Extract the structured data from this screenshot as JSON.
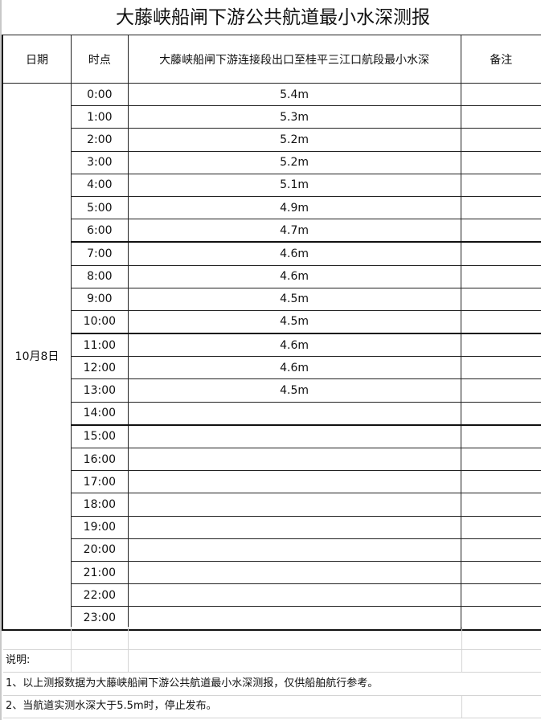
{
  "title": "大藤峡船闸下游公共航道最小水深测报",
  "headers": {
    "date": "日期",
    "time": "时点",
    "depth": "大藤峡船闸下游连接段出口至桂平三江口航段最小水深",
    "remark": "备注"
  },
  "date": "10月8日",
  "rows": [
    {
      "time": "0:00",
      "depth": "5.4m"
    },
    {
      "time": "1:00",
      "depth": "5.3m"
    },
    {
      "time": "2:00",
      "depth": "5.2m"
    },
    {
      "time": "3:00",
      "depth": "5.2m"
    },
    {
      "time": "4:00",
      "depth": "5.1m"
    },
    {
      "time": "5:00",
      "depth": "4.9m"
    },
    {
      "time": "6:00",
      "depth": "4.7m"
    },
    {
      "time": "7:00",
      "depth": "4.6m"
    },
    {
      "time": "8:00",
      "depth": "4.6m"
    },
    {
      "time": "9:00",
      "depth": "4.5m"
    },
    {
      "time": "10:00",
      "depth": "4.5m"
    },
    {
      "time": "11:00",
      "depth": "4.6m"
    },
    {
      "time": "12:00",
      "depth": "4.6m"
    },
    {
      "time": "13:00",
      "depth": "4.5m"
    },
    {
      "time": "14:00",
      "depth": ""
    },
    {
      "time": "15:00",
      "depth": ""
    },
    {
      "time": "16:00",
      "depth": ""
    },
    {
      "time": "17:00",
      "depth": ""
    },
    {
      "time": "18:00",
      "depth": ""
    },
    {
      "time": "19:00",
      "depth": ""
    },
    {
      "time": "20:00",
      "depth": ""
    },
    {
      "time": "21:00",
      "depth": ""
    },
    {
      "time": "22:00",
      "depth": ""
    },
    {
      "time": "23:00",
      "depth": ""
    }
  ],
  "notes": {
    "heading": "说明:",
    "items": [
      "1、以上测报数据为大藤峡船闸下游公共航道最小水深测报，仅供船舶航行参考。",
      "2、当航道实测水深大于5.5m时，停止发布。"
    ]
  }
}
